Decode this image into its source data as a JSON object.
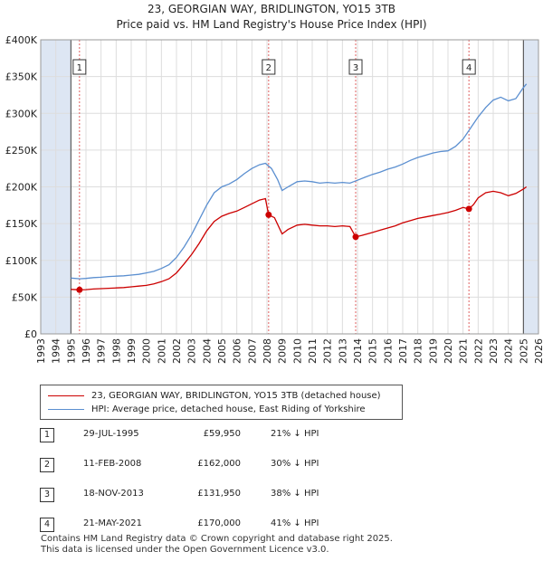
{
  "title_line1": "23, GEORGIAN WAY, BRIDLINGTON, YO15 3TB",
  "title_line2": "Price paid vs. HM Land Registry's House Price Index (HPI)",
  "legend": {
    "property": "23, GEORGIAN WAY, BRIDLINGTON, YO15 3TB (detached house)",
    "hpi": "HPI: Average price, detached house, East Riding of Yorkshire"
  },
  "colors": {
    "property": "#cc0000",
    "hpi": "#5b8fd0",
    "shade": "#dde6f3",
    "grid": "#dddddd"
  },
  "chart_data": {
    "type": "line",
    "title": "Price paid vs. HM Land Registry's House Price Index (HPI)",
    "xlim": [
      1993,
      2026
    ],
    "ylim": [
      0,
      400000
    ],
    "x_ticks": [
      1993,
      1994,
      1995,
      1996,
      1997,
      1998,
      1999,
      2000,
      2001,
      2002,
      2003,
      2004,
      2005,
      2006,
      2007,
      2008,
      2009,
      2010,
      2011,
      2012,
      2013,
      2014,
      2015,
      2016,
      2017,
      2018,
      2019,
      2020,
      2021,
      2022,
      2023,
      2024,
      2025,
      2026
    ],
    "y_ticks": [
      {
        "value": 0,
        "label": "£0"
      },
      {
        "value": 50000,
        "label": "£50K"
      },
      {
        "value": 100000,
        "label": "£100K"
      },
      {
        "value": 150000,
        "label": "£150K"
      },
      {
        "value": 200000,
        "label": "£200K"
      },
      {
        "value": 250000,
        "label": "£250K"
      },
      {
        "value": 300000,
        "label": "£300K"
      },
      {
        "value": 350000,
        "label": "£350K"
      },
      {
        "value": 400000,
        "label": "£400K"
      }
    ],
    "shaded_ranges": [
      [
        1993,
        1995.0
      ],
      [
        2025.0,
        2026
      ]
    ],
    "series": [
      {
        "name": "HPI: Average price, detached house, East Riding of Yorkshire",
        "color": "#5b8fd0",
        "points": [
          [
            1995.0,
            76000
          ],
          [
            1995.6,
            75000
          ],
          [
            1996.0,
            75500
          ],
          [
            1996.5,
            76500
          ],
          [
            1997.0,
            77000
          ],
          [
            1997.5,
            78000
          ],
          [
            1998.0,
            78500
          ],
          [
            1998.5,
            79000
          ],
          [
            1999.0,
            80000
          ],
          [
            1999.5,
            81000
          ],
          [
            2000.0,
            83000
          ],
          [
            2000.5,
            85000
          ],
          [
            2001.0,
            89000
          ],
          [
            2001.5,
            94000
          ],
          [
            2002.0,
            104000
          ],
          [
            2002.5,
            118000
          ],
          [
            2003.0,
            135000
          ],
          [
            2003.5,
            155000
          ],
          [
            2004.0,
            175000
          ],
          [
            2004.5,
            192000
          ],
          [
            2005.0,
            200000
          ],
          [
            2005.5,
            204000
          ],
          [
            2006.0,
            210000
          ],
          [
            2006.5,
            218000
          ],
          [
            2007.0,
            225000
          ],
          [
            2007.5,
            230000
          ],
          [
            2007.9,
            232000
          ],
          [
            2008.3,
            225000
          ],
          [
            2008.7,
            210000
          ],
          [
            2009.0,
            195000
          ],
          [
            2009.4,
            200000
          ],
          [
            2010.0,
            207000
          ],
          [
            2010.5,
            208000
          ],
          [
            2011.0,
            207000
          ],
          [
            2011.5,
            205000
          ],
          [
            2012.0,
            206000
          ],
          [
            2012.5,
            205000
          ],
          [
            2013.0,
            206000
          ],
          [
            2013.5,
            205000
          ],
          [
            2014.0,
            209000
          ],
          [
            2014.5,
            213000
          ],
          [
            2015.0,
            217000
          ],
          [
            2015.5,
            220000
          ],
          [
            2016.0,
            224000
          ],
          [
            2016.5,
            227000
          ],
          [
            2017.0,
            231000
          ],
          [
            2017.5,
            236000
          ],
          [
            2018.0,
            240000
          ],
          [
            2018.5,
            243000
          ],
          [
            2019.0,
            246000
          ],
          [
            2019.5,
            248000
          ],
          [
            2020.0,
            249000
          ],
          [
            2020.5,
            255000
          ],
          [
            2021.0,
            265000
          ],
          [
            2021.5,
            280000
          ],
          [
            2022.0,
            295000
          ],
          [
            2022.5,
            308000
          ],
          [
            2023.0,
            318000
          ],
          [
            2023.5,
            322000
          ],
          [
            2024.0,
            317000
          ],
          [
            2024.5,
            320000
          ],
          [
            2025.0,
            335000
          ],
          [
            2025.2,
            340000
          ]
        ]
      },
      {
        "name": "23, GEORGIAN WAY, BRIDLINGTON, YO15 3TB (detached house)",
        "color": "#cc0000",
        "points": [
          [
            1995.0,
            60500
          ],
          [
            1995.57,
            59950
          ],
          [
            1996.0,
            60200
          ],
          [
            1996.5,
            61000
          ],
          [
            1997.0,
            61500
          ],
          [
            1997.5,
            62000
          ],
          [
            1998.0,
            62500
          ],
          [
            1998.5,
            63000
          ],
          [
            1999.0,
            64000
          ],
          [
            1999.5,
            65000
          ],
          [
            2000.0,
            66000
          ],
          [
            2000.5,
            68000
          ],
          [
            2001.0,
            71000
          ],
          [
            2001.5,
            75000
          ],
          [
            2002.0,
            83000
          ],
          [
            2002.5,
            95000
          ],
          [
            2003.0,
            108000
          ],
          [
            2003.5,
            123000
          ],
          [
            2004.0,
            140000
          ],
          [
            2004.5,
            153000
          ],
          [
            2005.0,
            160000
          ],
          [
            2005.5,
            164000
          ],
          [
            2006.0,
            167000
          ],
          [
            2006.5,
            172000
          ],
          [
            2007.0,
            177000
          ],
          [
            2007.5,
            182000
          ],
          [
            2007.9,
            184000
          ],
          [
            2008.11,
            162000
          ],
          [
            2008.5,
            158000
          ],
          [
            2009.0,
            136000
          ],
          [
            2009.4,
            142000
          ],
          [
            2010.0,
            148000
          ],
          [
            2010.5,
            149000
          ],
          [
            2011.0,
            148000
          ],
          [
            2011.5,
            147000
          ],
          [
            2012.0,
            147000
          ],
          [
            2012.5,
            146000
          ],
          [
            2013.0,
            147000
          ],
          [
            2013.5,
            146000
          ],
          [
            2013.88,
            131950
          ],
          [
            2014.3,
            134000
          ],
          [
            2015.0,
            138000
          ],
          [
            2015.5,
            141000
          ],
          [
            2016.0,
            144000
          ],
          [
            2016.5,
            147000
          ],
          [
            2017.0,
            151000
          ],
          [
            2017.5,
            154000
          ],
          [
            2018.0,
            157000
          ],
          [
            2018.5,
            159000
          ],
          [
            2019.0,
            161000
          ],
          [
            2019.5,
            163000
          ],
          [
            2020.0,
            165000
          ],
          [
            2020.5,
            168000
          ],
          [
            2021.0,
            172000
          ],
          [
            2021.39,
            170000
          ],
          [
            2021.7,
            176000
          ],
          [
            2022.0,
            185000
          ],
          [
            2022.5,
            192000
          ],
          [
            2023.0,
            194000
          ],
          [
            2023.5,
            192000
          ],
          [
            2024.0,
            188000
          ],
          [
            2024.5,
            191000
          ],
          [
            2025.0,
            197000
          ],
          [
            2025.2,
            200000
          ]
        ]
      }
    ],
    "sale_markers": [
      {
        "label": "1",
        "year": 1995.57,
        "price": 59950
      },
      {
        "label": "2",
        "year": 2008.11,
        "price": 162000
      },
      {
        "label": "3",
        "year": 2013.88,
        "price": 131950
      },
      {
        "label": "4",
        "year": 2021.39,
        "price": 170000
      }
    ]
  },
  "sales": [
    {
      "num": "1",
      "date": "29-JUL-1995",
      "price": "£59,950",
      "hpi": "21% ↓ HPI"
    },
    {
      "num": "2",
      "date": "11-FEB-2008",
      "price": "£162,000",
      "hpi": "30% ↓ HPI"
    },
    {
      "num": "3",
      "date": "18-NOV-2013",
      "price": "£131,950",
      "hpi": "38% ↓ HPI"
    },
    {
      "num": "4",
      "date": "21-MAY-2021",
      "price": "£170,000",
      "hpi": "41% ↓ HPI"
    }
  ],
  "footer": {
    "line1": "Contains HM Land Registry data © Crown copyright and database right 2025.",
    "line2": "This data is licensed under the Open Government Licence v3.0."
  }
}
